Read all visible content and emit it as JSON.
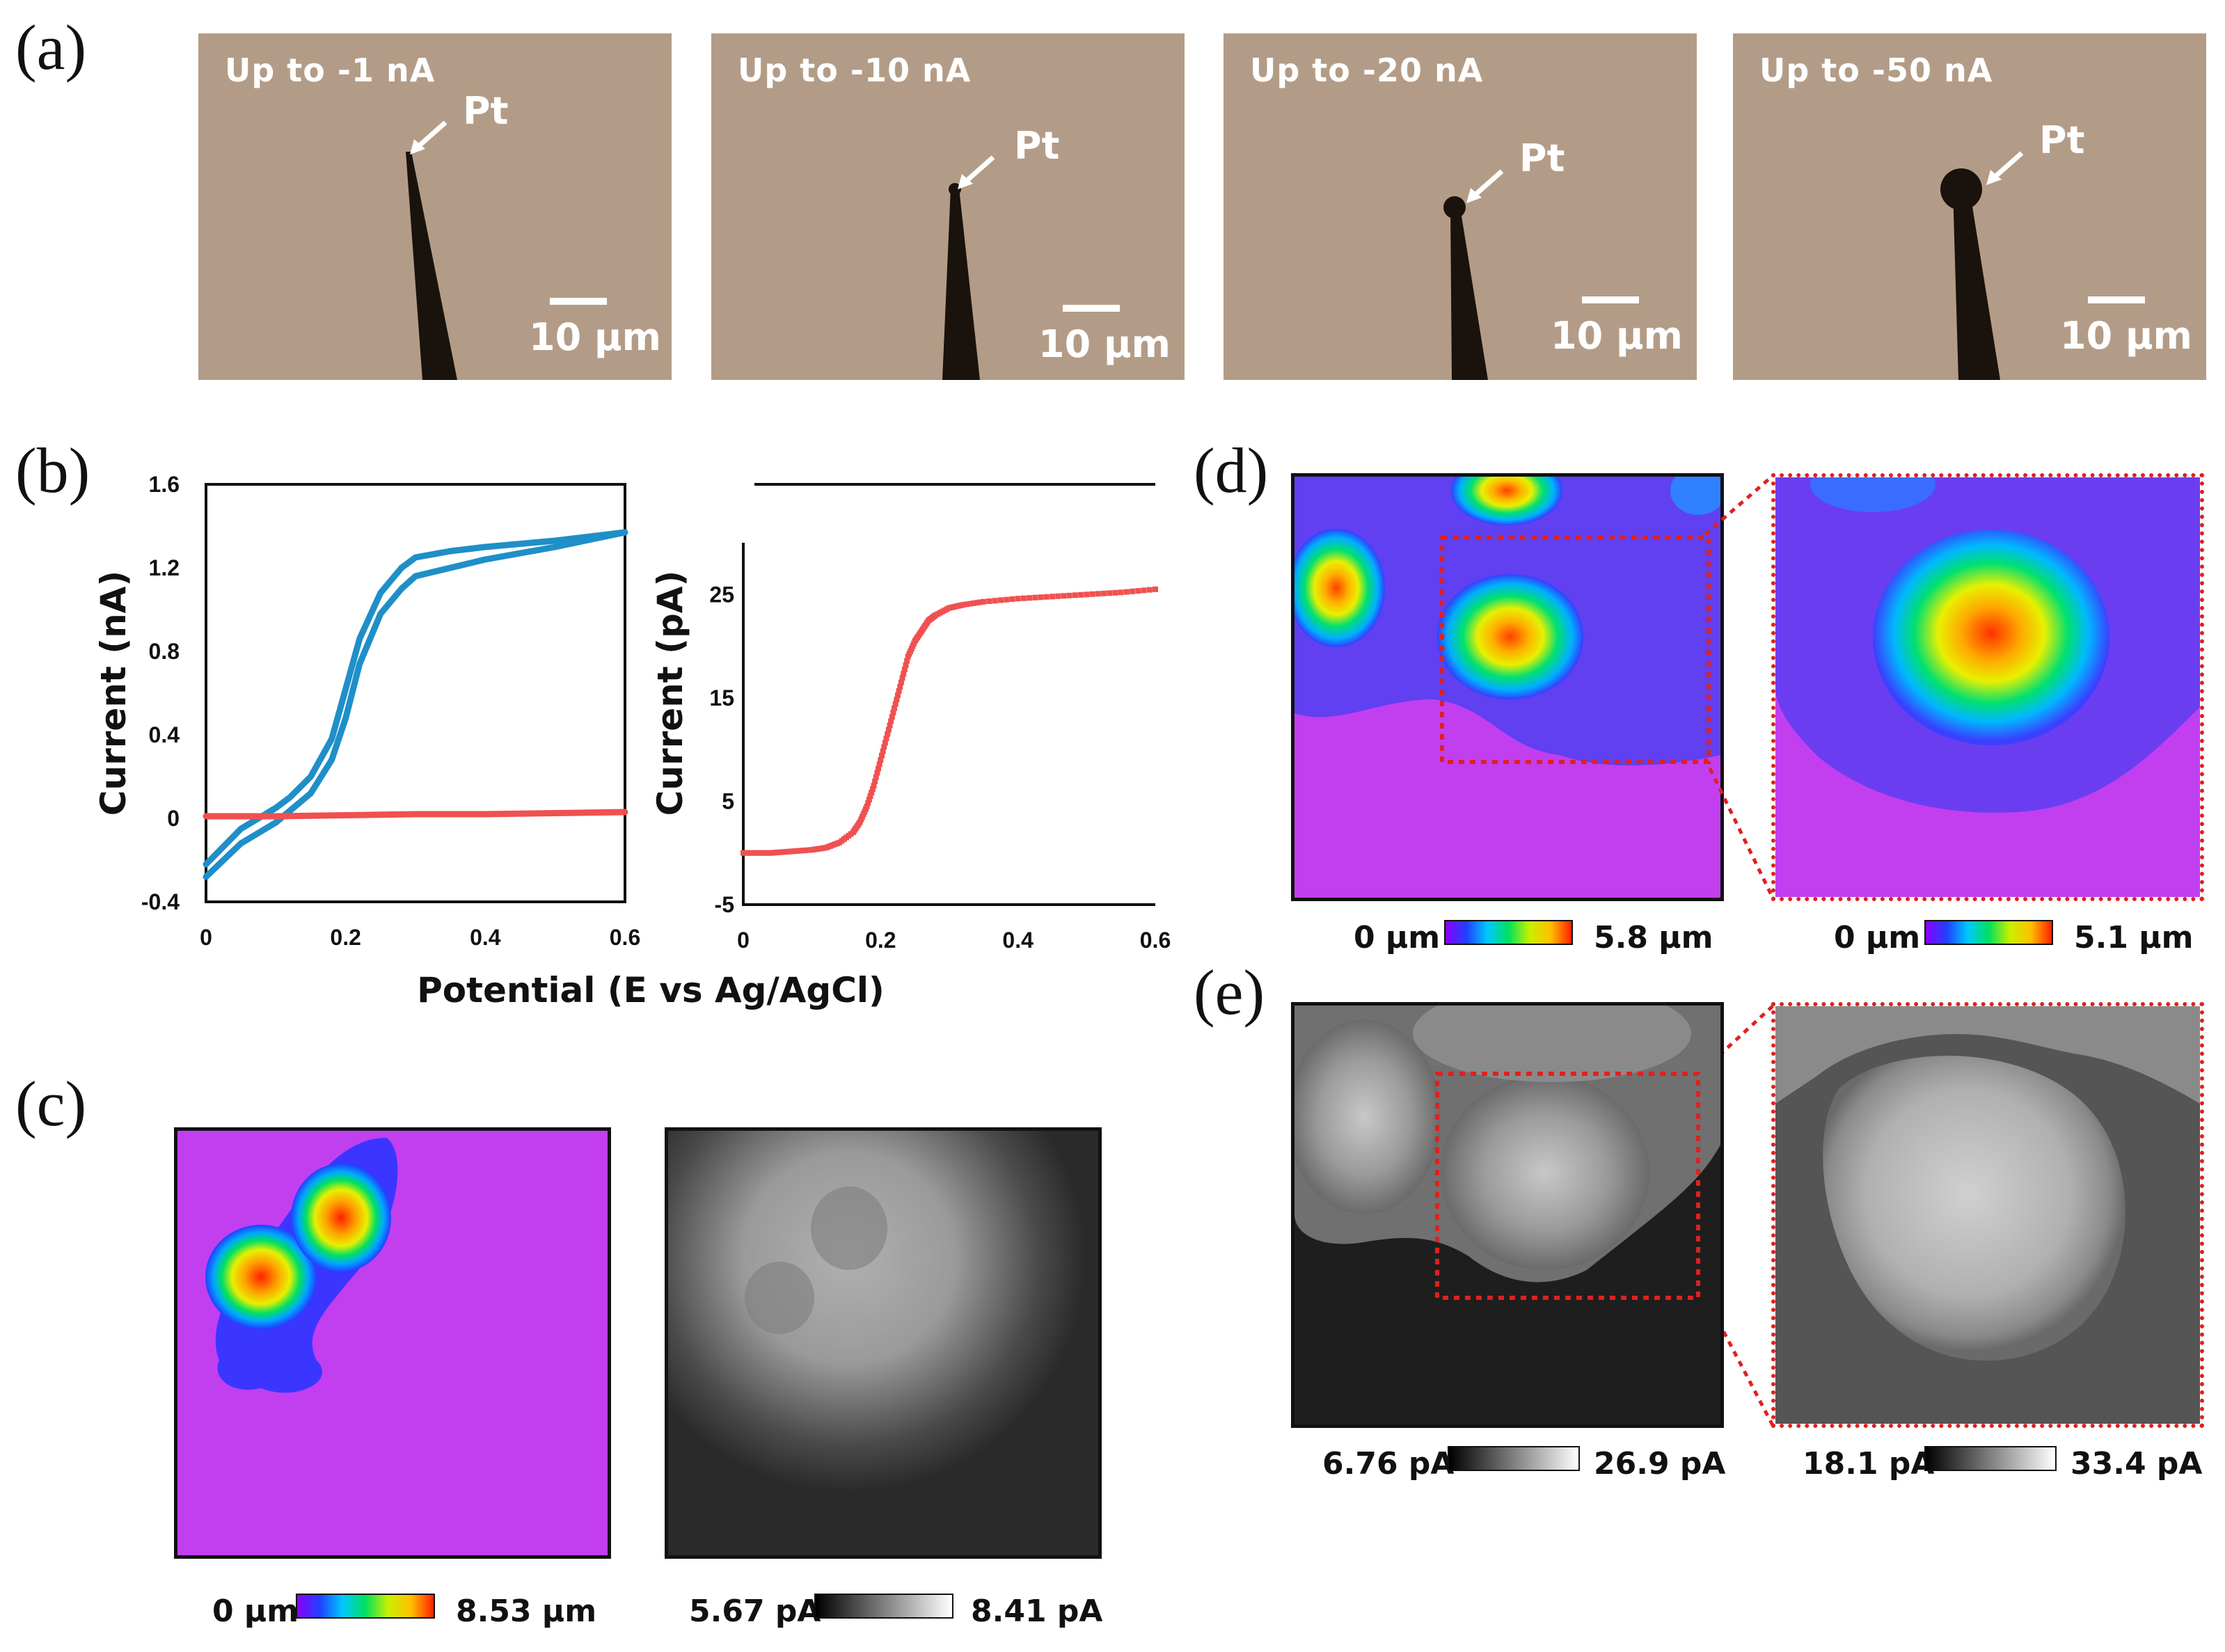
{
  "panel_labels": {
    "a": "(a)",
    "b": "(b)",
    "c": "(c)",
    "d": "(d)",
    "e": "(e)"
  },
  "panel_a": {
    "images": [
      {
        "condition": "Up to -1 nA",
        "pointer": "Pt",
        "scale": "10 µm"
      },
      {
        "condition": "Up to -10 nA",
        "pointer": "Pt",
        "scale": "10 µm"
      },
      {
        "condition": "Up to -20 nA",
        "pointer": "Pt",
        "scale": "10 µm"
      },
      {
        "condition": "Up to -50 nA",
        "pointer": "Pt",
        "scale": "10 µm"
      }
    ]
  },
  "panel_b": {
    "shared_xlabel": "Potential (E vs Ag/AgCl)"
  },
  "chart_data": [
    {
      "type": "line",
      "title": "",
      "xlabel": "Potential (E vs Ag/AgCl)",
      "ylabel": "Current (nA)",
      "xlim": [
        0,
        0.6
      ],
      "ylim": [
        -0.4,
        1.6
      ],
      "xticks": [
        "0",
        "0.2",
        "0.4",
        "0.6"
      ],
      "yticks": [
        "-0.4",
        "0",
        "0.4",
        "0.8",
        "1.2",
        "1.6"
      ],
      "series": [
        {
          "name": "cyclic voltammogram (forward)",
          "color": "#1f8fc8",
          "x": [
            0,
            0.05,
            0.1,
            0.15,
            0.18,
            0.2,
            0.22,
            0.25,
            0.28,
            0.3,
            0.35,
            0.4,
            0.5,
            0.6
          ],
          "y": [
            -0.28,
            -0.12,
            -0.02,
            0.12,
            0.28,
            0.48,
            0.74,
            0.98,
            1.1,
            1.16,
            1.2,
            1.24,
            1.3,
            1.37
          ]
        },
        {
          "name": "cyclic voltammogram (reverse)",
          "color": "#1f8fc8",
          "x": [
            0.6,
            0.5,
            0.4,
            0.35,
            0.3,
            0.28,
            0.25,
            0.22,
            0.2,
            0.18,
            0.15,
            0.12,
            0.1,
            0.05,
            0
          ],
          "y": [
            1.37,
            1.33,
            1.3,
            1.28,
            1.25,
            1.2,
            1.08,
            0.86,
            0.62,
            0.38,
            0.2,
            0.1,
            0.05,
            -0.05,
            -0.22
          ]
        },
        {
          "name": "background",
          "color": "#f05050",
          "x": [
            0,
            0.1,
            0.2,
            0.3,
            0.4,
            0.5,
            0.6
          ],
          "y": [
            0.01,
            0.01,
            0.015,
            0.02,
            0.02,
            0.025,
            0.03
          ]
        }
      ]
    },
    {
      "type": "scatter",
      "title": "",
      "xlabel": "Potential (E vs Ag/AgCl)",
      "ylabel": "Current (pA)",
      "xlim": [
        0,
        0.6
      ],
      "ylim": [
        -5,
        30
      ],
      "xticks": [
        "0",
        "0.2",
        "0.4",
        "0.6"
      ],
      "yticks": [
        "-5",
        "5",
        "15",
        "25"
      ],
      "series": [
        {
          "name": "red",
          "color": "#f05050",
          "x": [
            0,
            0.02,
            0.04,
            0.06,
            0.08,
            0.1,
            0.12,
            0.14,
            0.16,
            0.17,
            0.18,
            0.19,
            0.2,
            0.21,
            0.22,
            0.23,
            0.24,
            0.25,
            0.26,
            0.27,
            0.28,
            0.3,
            0.32,
            0.35,
            0.4,
            0.45,
            0.5,
            0.55,
            0.6
          ],
          "y": [
            0,
            0,
            0,
            0.1,
            0.2,
            0.3,
            0.5,
            1,
            2,
            3,
            4.5,
            6.5,
            9,
            11.5,
            14,
            16.5,
            19,
            20.5,
            21.5,
            22.5,
            23,
            23.7,
            24,
            24.3,
            24.6,
            24.8,
            25,
            25.2,
            25.5
          ]
        }
      ]
    }
  ],
  "panel_c": {
    "height_scale": {
      "min": "0 µm",
      "max": "8.53 µm"
    },
    "current_scale": {
      "min": "5.67 pA",
      "max": "8.41 pA"
    }
  },
  "panel_d": {
    "full_scale": {
      "min": "0 µm",
      "max": "5.8 µm"
    },
    "zoom_scale": {
      "min": "0 µm",
      "max": "5.1 µm"
    }
  },
  "panel_e": {
    "full_scale": {
      "min": "6.76 pA",
      "max": "26.9 pA"
    },
    "zoom_scale": {
      "min": "18.1 pA",
      "max": "33.4 pA"
    }
  }
}
